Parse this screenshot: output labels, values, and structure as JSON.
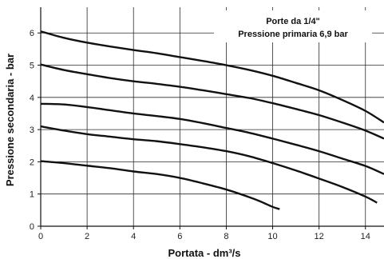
{
  "chart_data": {
    "type": "line",
    "xlabel": "Portata - dm³/s",
    "ylabel": "Pressione secondaria - bar",
    "annotation": [
      "Porte da 1/4\"",
      "Pressione primaria 6,9 bar"
    ],
    "xlim": [
      0,
      14.8
    ],
    "ylim": [
      0,
      6.8
    ],
    "xticks": [
      0,
      2,
      4,
      6,
      8,
      10,
      12,
      14
    ],
    "yticks": [
      0,
      1,
      2,
      3,
      4,
      5,
      6
    ],
    "grid": true,
    "series": [
      {
        "x": [
          0,
          1,
          2,
          3,
          4,
          5,
          6,
          7,
          8,
          9,
          10,
          11,
          12,
          13,
          14,
          14.8
        ],
        "y": [
          6.05,
          5.85,
          5.7,
          5.58,
          5.47,
          5.37,
          5.25,
          5.13,
          5.0,
          4.85,
          4.67,
          4.45,
          4.22,
          3.92,
          3.58,
          3.22
        ]
      },
      {
        "x": [
          0,
          1,
          2,
          3,
          4,
          5,
          6,
          7,
          8,
          9,
          10,
          11,
          12,
          13,
          14,
          14.8
        ],
        "y": [
          5.02,
          4.85,
          4.72,
          4.6,
          4.5,
          4.42,
          4.33,
          4.22,
          4.1,
          3.98,
          3.82,
          3.64,
          3.45,
          3.22,
          2.97,
          2.72
        ]
      },
      {
        "x": [
          0,
          1,
          2,
          3,
          4,
          5,
          6,
          7,
          8,
          9,
          10,
          11,
          12,
          13,
          14,
          14.8
        ],
        "y": [
          3.8,
          3.78,
          3.7,
          3.6,
          3.5,
          3.42,
          3.33,
          3.2,
          3.05,
          2.9,
          2.72,
          2.53,
          2.33,
          2.1,
          1.87,
          1.62
        ]
      },
      {
        "x": [
          0,
          1,
          2,
          3,
          4,
          5,
          6,
          7,
          8,
          9,
          10,
          11,
          12,
          13,
          14,
          14.5
        ],
        "y": [
          3.1,
          2.97,
          2.86,
          2.78,
          2.7,
          2.64,
          2.55,
          2.45,
          2.33,
          2.17,
          1.96,
          1.73,
          1.48,
          1.22,
          0.92,
          0.73
        ]
      },
      {
        "x": [
          0,
          1,
          2,
          3,
          4,
          5,
          6,
          7,
          8,
          9,
          9.5,
          10,
          10.3
        ],
        "y": [
          2.02,
          1.96,
          1.88,
          1.8,
          1.7,
          1.62,
          1.5,
          1.33,
          1.14,
          0.9,
          0.76,
          0.6,
          0.53
        ]
      }
    ]
  }
}
